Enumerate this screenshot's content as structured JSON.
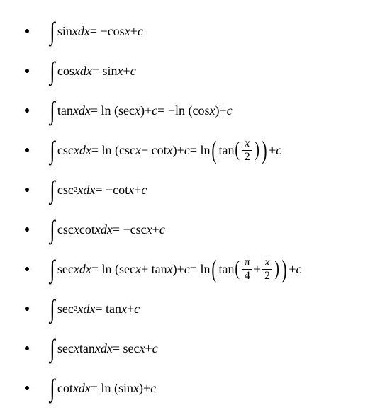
{
  "formulas": [
    {
      "parts": [
        "∫",
        "sin ",
        "x",
        "d",
        "x",
        " = −cos ",
        "x",
        "+",
        "c"
      ],
      "styles": [
        "int",
        "reg",
        "it",
        "it",
        "it",
        "reg",
        "it",
        "reg",
        "it"
      ]
    },
    {
      "parts": [
        "∫",
        "cos ",
        "x",
        "d",
        "x",
        " = sin ",
        "x",
        "+",
        "c"
      ],
      "styles": [
        "int",
        "reg",
        "it",
        "it",
        "it",
        "reg",
        "it",
        "reg",
        "it"
      ]
    },
    {
      "parts": [
        "∫",
        "tan ",
        "x",
        "d",
        "x",
        " = ln (sec ",
        "x",
        ")+",
        "c",
        " = −ln (cos ",
        "x",
        ")+",
        "c"
      ],
      "styles": [
        "int",
        "reg",
        "it",
        "it",
        "it",
        "reg",
        "it",
        "reg",
        "it",
        "reg",
        "it",
        "reg",
        "it"
      ]
    },
    {
      "type": "csc",
      "prefix": [
        "∫",
        "csc ",
        "x",
        "d",
        "x",
        " = ln (csc ",
        "x",
        " − cot ",
        "x",
        ")+",
        "c",
        " = ln"
      ],
      "prefix_styles": [
        "int",
        "reg",
        "it",
        "it",
        "it",
        "reg",
        "it",
        "reg",
        "it",
        "reg",
        "it",
        "reg"
      ],
      "inner_label": "tan",
      "frac_num": "x",
      "frac_den": "2",
      "suffix": [
        "+",
        "c"
      ],
      "suffix_styles": [
        "reg",
        "it"
      ]
    },
    {
      "parts": [
        "∫",
        "csc",
        "2",
        " x",
        "d",
        "x",
        " = −cot ",
        "x",
        "+",
        "c"
      ],
      "styles": [
        "int",
        "reg",
        "sup",
        "it",
        "it",
        "it",
        "reg",
        "it",
        "reg",
        "it"
      ]
    },
    {
      "parts": [
        "∫",
        "csc ",
        "x",
        " cot ",
        "x",
        "d",
        "x",
        " = −csc ",
        "x",
        "+",
        "c"
      ],
      "styles": [
        "int",
        "reg",
        "it",
        "reg",
        "it",
        "it",
        "it",
        "reg",
        "it",
        "reg",
        "it"
      ]
    },
    {
      "type": "sec",
      "prefix": [
        "∫",
        "sec ",
        "x",
        "d",
        "x",
        " = ln (sec ",
        "x",
        " + tan ",
        "x",
        ")+",
        "c",
        " = ln"
      ],
      "prefix_styles": [
        "int",
        "reg",
        "it",
        "it",
        "it",
        "reg",
        "it",
        "reg",
        "it",
        "reg",
        "it",
        "reg"
      ],
      "inner_label": "tan",
      "frac1_num": "π",
      "frac1_den": "4",
      "plus": "+",
      "frac2_num": "x",
      "frac2_den": "2",
      "suffix": [
        "+",
        "c"
      ],
      "suffix_styles": [
        "reg",
        "it"
      ]
    },
    {
      "parts": [
        "∫",
        "sec",
        "2",
        " x",
        "d",
        "x",
        " = tan ",
        "x",
        "+",
        "c"
      ],
      "styles": [
        "int",
        "reg",
        "sup",
        "it",
        "it",
        "it",
        "reg",
        "it",
        "reg",
        "it"
      ]
    },
    {
      "parts": [
        "∫",
        "sec ",
        "x",
        " tan ",
        "x",
        "d",
        "x",
        " = sec ",
        "x",
        "+",
        "c"
      ],
      "styles": [
        "int",
        "reg",
        "it",
        "reg",
        "it",
        "it",
        "it",
        "reg",
        "it",
        "reg",
        "it"
      ]
    },
    {
      "parts": [
        "∫",
        "cot ",
        "x",
        "d",
        "x",
        " = ln (sin ",
        "x",
        ")+",
        "c"
      ],
      "styles": [
        "int",
        "reg",
        "it",
        "it",
        "it",
        "reg",
        "it",
        "reg",
        "it"
      ]
    }
  ],
  "colors": {
    "background": "#ffffff",
    "text": "#000000",
    "bullet": "#000000"
  },
  "typography": {
    "font_family": "Times New Roman",
    "base_size": 18,
    "integral_size": 36
  }
}
